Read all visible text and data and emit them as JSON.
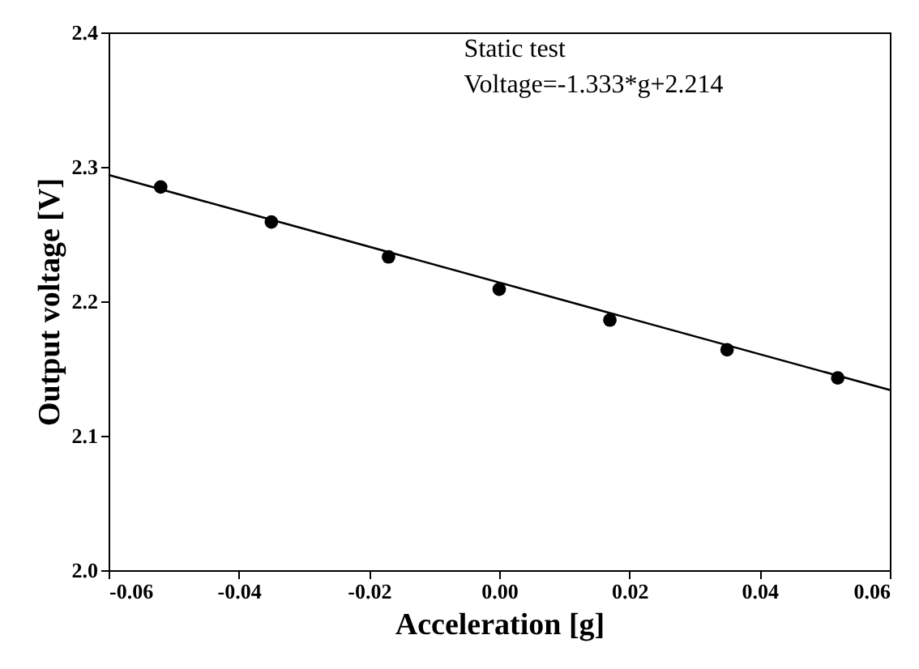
{
  "chart_data": {
    "type": "scatter",
    "xlabel": "Acceleration [g]",
    "ylabel": "Output voltage [V]",
    "annotations": [
      "Static test",
      "Voltage=-1.333*g+2.214"
    ],
    "x": [
      -0.052,
      -0.035,
      -0.017,
      0,
      0.017,
      0.035,
      0.052
    ],
    "series": [
      {
        "type": "scatter",
        "color": "#000000",
        "marker": "circle",
        "values": [
          2.285,
          2.259,
          2.233,
          2.209,
          2.186,
          2.164,
          2.143
        ]
      },
      {
        "type": "line",
        "color": "#000000",
        "line_style": "solid",
        "x": [
          -0.06,
          0.06
        ],
        "values": [
          2.294,
          2.134
        ]
      }
    ],
    "xlim": [
      -0.06,
      0.06
    ],
    "ylim": [
      2.0,
      2.4
    ],
    "xticks": [
      -0.06,
      -0.04,
      -0.02,
      {
        "value": 0,
        "label": "0.00"
      },
      0.02,
      0.04,
      0.06
    ],
    "yticks": [
      {
        "value": 2,
        "label": "2.0"
      },
      2.1,
      2.2,
      2.3,
      2.4
    ],
    "grid": false
  }
}
